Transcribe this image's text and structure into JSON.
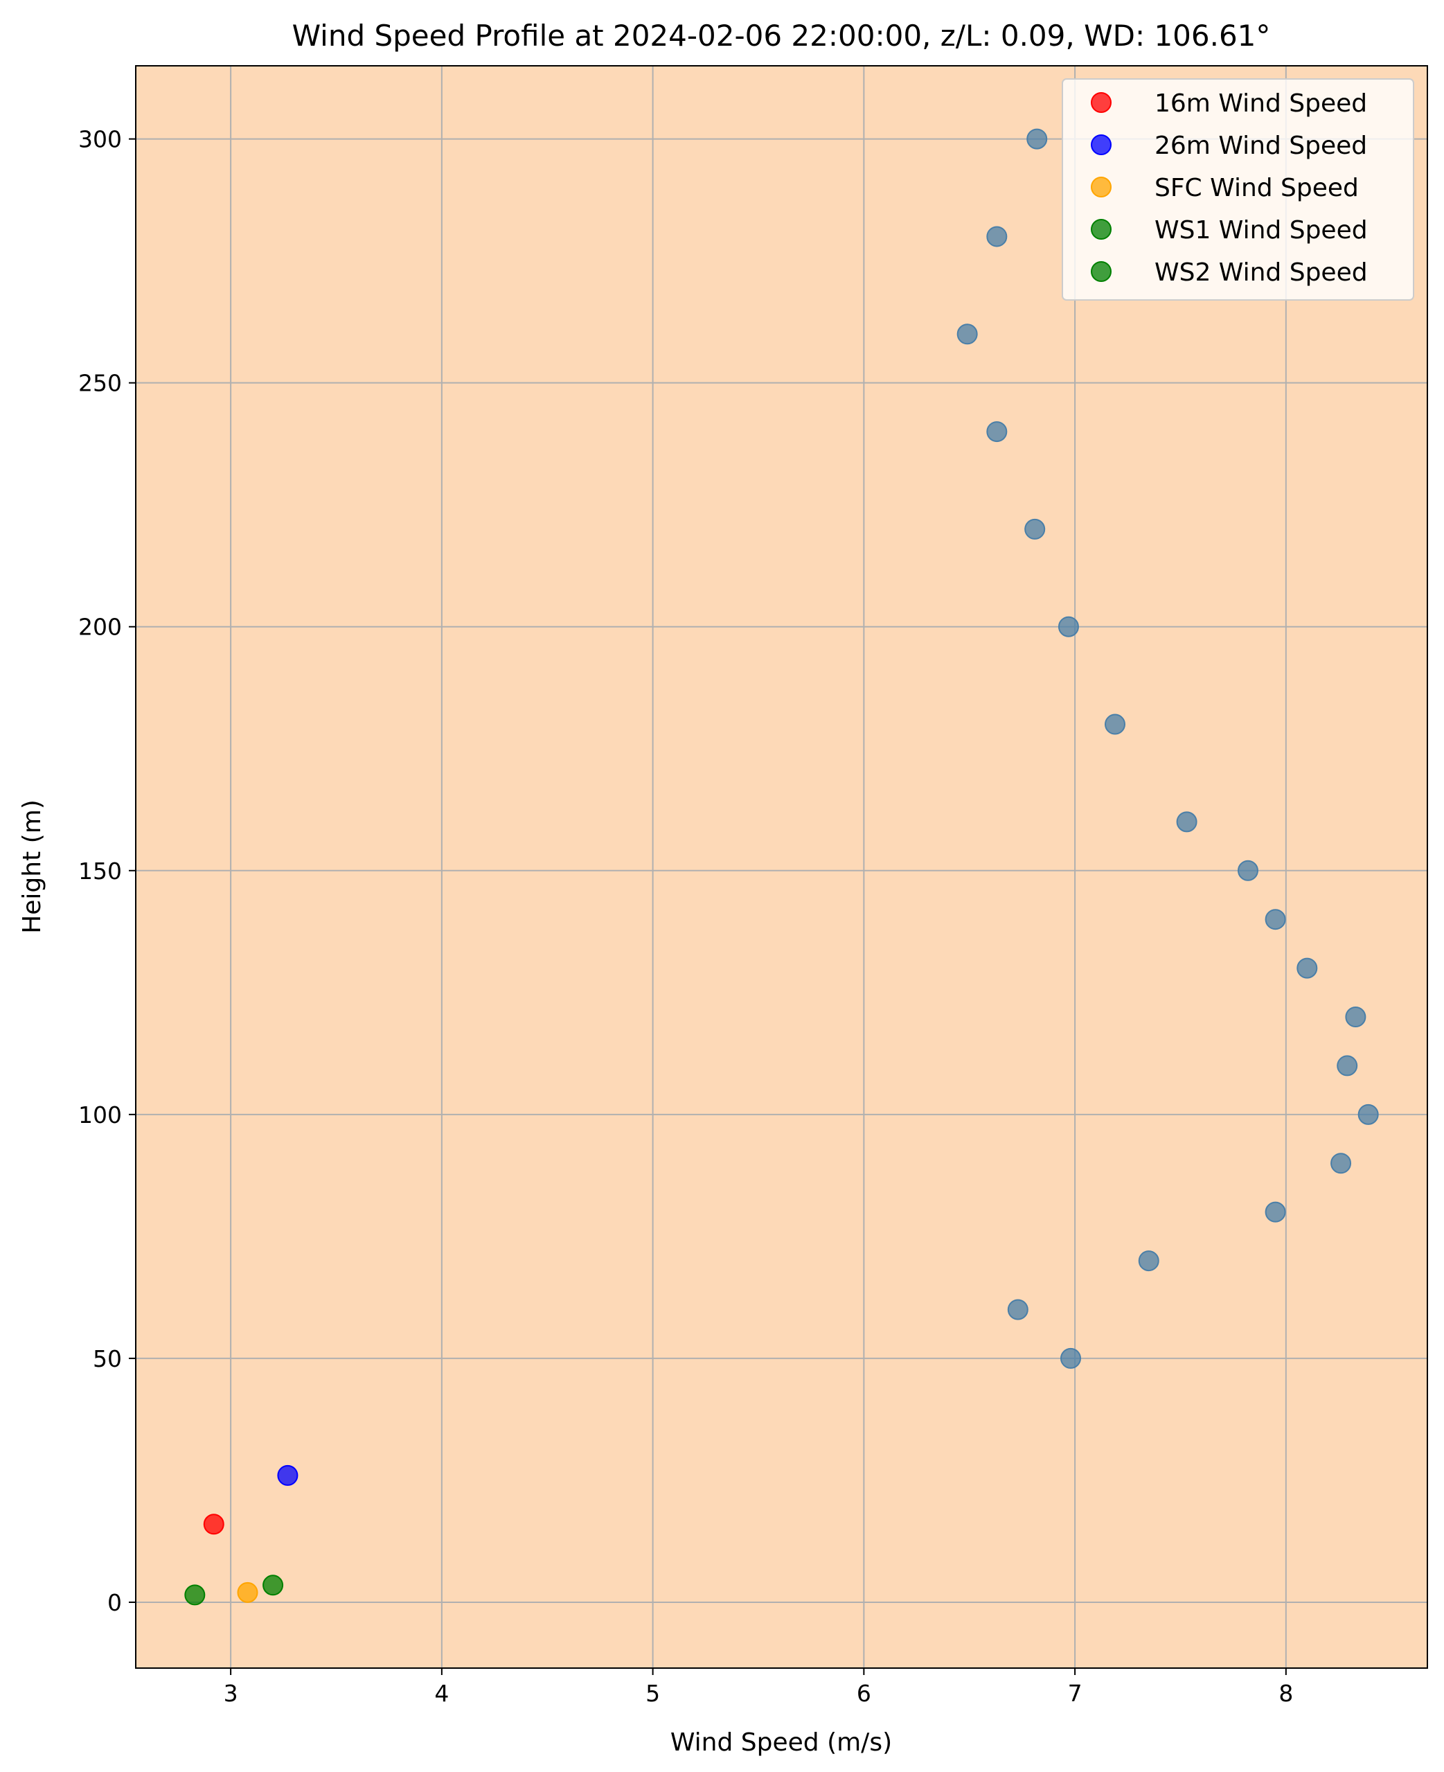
{
  "chart_data": {
    "type": "scatter",
    "title": "Wind Speed Profile at 2024-02-06 22:00:00, z/L: 0.09, WD: 106.61°",
    "xlabel": "Wind Speed (m/s)",
    "ylabel": "Height (m)",
    "xlim": [
      2.55,
      8.67
    ],
    "ylim": [
      -13.5,
      315
    ],
    "xticks": [
      3,
      4,
      5,
      6,
      7,
      8
    ],
    "yticks": [
      0,
      50,
      100,
      150,
      200,
      250,
      300
    ],
    "grid": true,
    "background": "#fdd9b7",
    "legend_position": "top-right",
    "series": [
      {
        "color": "#4a7fa8",
        "in_legend": false,
        "points": [
          {
            "x": 6.98,
            "y": 50
          },
          {
            "x": 6.73,
            "y": 60
          },
          {
            "x": 7.35,
            "y": 70
          },
          {
            "x": 7.95,
            "y": 80
          },
          {
            "x": 8.26,
            "y": 90
          },
          {
            "x": 8.39,
            "y": 100
          },
          {
            "x": 8.29,
            "y": 110
          },
          {
            "x": 8.33,
            "y": 120
          },
          {
            "x": 8.1,
            "y": 130
          },
          {
            "x": 7.95,
            "y": 140
          },
          {
            "x": 7.82,
            "y": 150
          },
          {
            "x": 7.53,
            "y": 160
          },
          {
            "x": 7.19,
            "y": 180
          },
          {
            "x": 6.97,
            "y": 200
          },
          {
            "x": 6.81,
            "y": 220
          },
          {
            "x": 6.63,
            "y": 240
          },
          {
            "x": 6.49,
            "y": 260
          },
          {
            "x": 6.63,
            "y": 280
          },
          {
            "x": 6.82,
            "y": 300
          }
        ]
      },
      {
        "name": "16m Wind Speed",
        "color": "#ff0000",
        "in_legend": true,
        "points": [
          {
            "x": 2.92,
            "y": 16
          }
        ]
      },
      {
        "name": "26m Wind Speed",
        "color": "#0000ff",
        "in_legend": true,
        "points": [
          {
            "x": 3.27,
            "y": 26
          }
        ]
      },
      {
        "name": "SFC Wind Speed",
        "color": "#ffa500",
        "in_legend": true,
        "points": [
          {
            "x": 3.08,
            "y": 2
          }
        ]
      },
      {
        "name": "WS1 Wind Speed",
        "color": "#008000",
        "in_legend": true,
        "points": [
          {
            "x": 2.83,
            "y": 1.5
          }
        ]
      },
      {
        "name": "WS2 Wind Speed",
        "color": "#008000",
        "in_legend": true,
        "points": [
          {
            "x": 3.2,
            "y": 3.5
          }
        ]
      }
    ]
  }
}
